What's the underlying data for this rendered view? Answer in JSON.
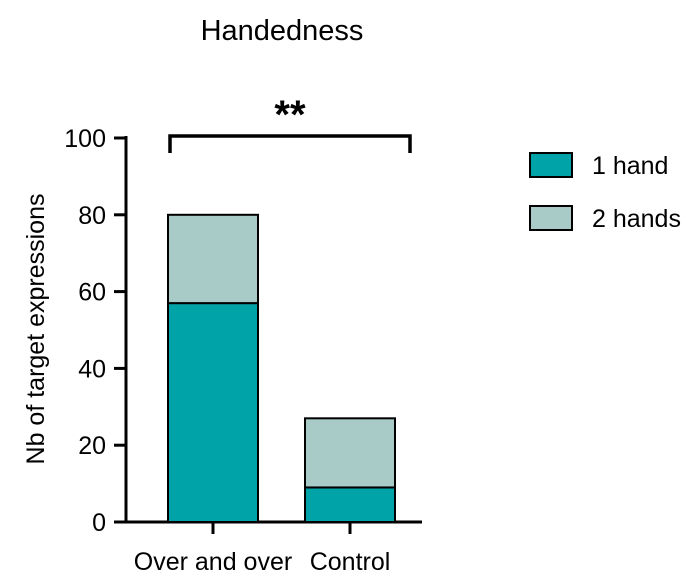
{
  "chart_data": {
    "type": "bar",
    "stacked": true,
    "title": "Handedness",
    "xlabel": "",
    "ylabel": "Nb of target expressions",
    "categories": [
      "Over and over",
      "Control"
    ],
    "series": [
      {
        "name": "1 hand",
        "values": [
          57,
          9
        ],
        "color": "#00A3A8"
      },
      {
        "name": "2 hands",
        "values": [
          23,
          18
        ],
        "color": "#A8CBC7"
      }
    ],
    "ylim": [
      0,
      100
    ],
    "yticks": [
      0,
      20,
      40,
      60,
      80,
      100
    ],
    "grid": false,
    "legend_position": "right",
    "annotations": [
      {
        "text": "**",
        "between": [
          "Over and over",
          "Control"
        ]
      }
    ]
  }
}
